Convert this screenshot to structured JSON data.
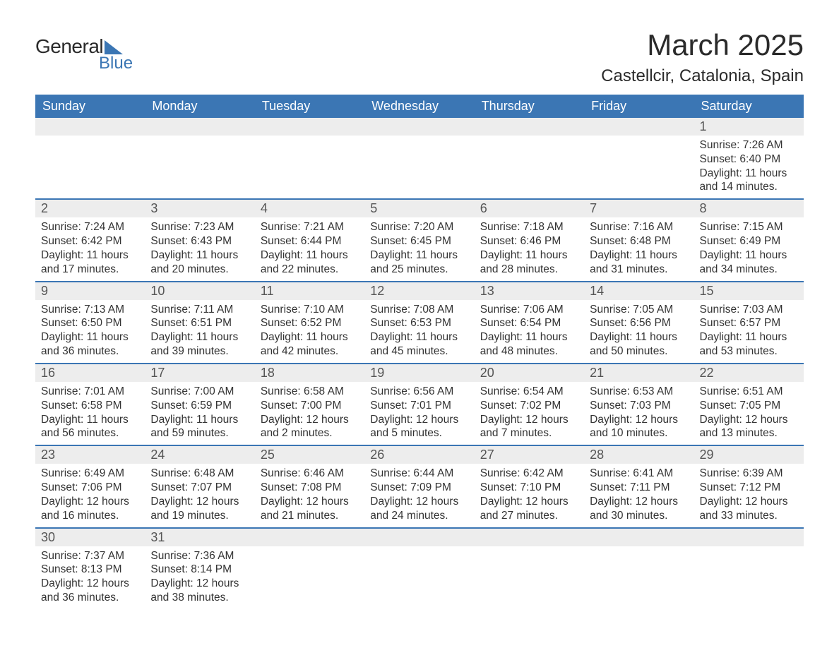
{
  "brand": {
    "word1": "General",
    "word2": "Blue"
  },
  "title": "March 2025",
  "location": "Castellcir, Catalonia, Spain",
  "colors": {
    "header_bg": "#3b76b4",
    "header_text": "#ffffff",
    "daynum_bg": "#ededed",
    "row_divider": "#3b76b4",
    "body_text": "#333333",
    "page_bg": "#ffffff"
  },
  "typography": {
    "title_fontsize": 42,
    "location_fontsize": 24,
    "dayheader_fontsize": 18,
    "daynum_fontsize": 18,
    "body_fontsize": 15.5
  },
  "day_headers": [
    "Sunday",
    "Monday",
    "Tuesday",
    "Wednesday",
    "Thursday",
    "Friday",
    "Saturday"
  ],
  "weeks": [
    [
      {
        "empty": true
      },
      {
        "empty": true
      },
      {
        "empty": true
      },
      {
        "empty": true
      },
      {
        "empty": true
      },
      {
        "empty": true
      },
      {
        "num": "1",
        "sunrise": "Sunrise: 7:26 AM",
        "sunset": "Sunset: 6:40 PM",
        "day1": "Daylight: 11 hours",
        "day2": "and 14 minutes."
      }
    ],
    [
      {
        "num": "2",
        "sunrise": "Sunrise: 7:24 AM",
        "sunset": "Sunset: 6:42 PM",
        "day1": "Daylight: 11 hours",
        "day2": "and 17 minutes."
      },
      {
        "num": "3",
        "sunrise": "Sunrise: 7:23 AM",
        "sunset": "Sunset: 6:43 PM",
        "day1": "Daylight: 11 hours",
        "day2": "and 20 minutes."
      },
      {
        "num": "4",
        "sunrise": "Sunrise: 7:21 AM",
        "sunset": "Sunset: 6:44 PM",
        "day1": "Daylight: 11 hours",
        "day2": "and 22 minutes."
      },
      {
        "num": "5",
        "sunrise": "Sunrise: 7:20 AM",
        "sunset": "Sunset: 6:45 PM",
        "day1": "Daylight: 11 hours",
        "day2": "and 25 minutes."
      },
      {
        "num": "6",
        "sunrise": "Sunrise: 7:18 AM",
        "sunset": "Sunset: 6:46 PM",
        "day1": "Daylight: 11 hours",
        "day2": "and 28 minutes."
      },
      {
        "num": "7",
        "sunrise": "Sunrise: 7:16 AM",
        "sunset": "Sunset: 6:48 PM",
        "day1": "Daylight: 11 hours",
        "day2": "and 31 minutes."
      },
      {
        "num": "8",
        "sunrise": "Sunrise: 7:15 AM",
        "sunset": "Sunset: 6:49 PM",
        "day1": "Daylight: 11 hours",
        "day2": "and 34 minutes."
      }
    ],
    [
      {
        "num": "9",
        "sunrise": "Sunrise: 7:13 AM",
        "sunset": "Sunset: 6:50 PM",
        "day1": "Daylight: 11 hours",
        "day2": "and 36 minutes."
      },
      {
        "num": "10",
        "sunrise": "Sunrise: 7:11 AM",
        "sunset": "Sunset: 6:51 PM",
        "day1": "Daylight: 11 hours",
        "day2": "and 39 minutes."
      },
      {
        "num": "11",
        "sunrise": "Sunrise: 7:10 AM",
        "sunset": "Sunset: 6:52 PM",
        "day1": "Daylight: 11 hours",
        "day2": "and 42 minutes."
      },
      {
        "num": "12",
        "sunrise": "Sunrise: 7:08 AM",
        "sunset": "Sunset: 6:53 PM",
        "day1": "Daylight: 11 hours",
        "day2": "and 45 minutes."
      },
      {
        "num": "13",
        "sunrise": "Sunrise: 7:06 AM",
        "sunset": "Sunset: 6:54 PM",
        "day1": "Daylight: 11 hours",
        "day2": "and 48 minutes."
      },
      {
        "num": "14",
        "sunrise": "Sunrise: 7:05 AM",
        "sunset": "Sunset: 6:56 PM",
        "day1": "Daylight: 11 hours",
        "day2": "and 50 minutes."
      },
      {
        "num": "15",
        "sunrise": "Sunrise: 7:03 AM",
        "sunset": "Sunset: 6:57 PM",
        "day1": "Daylight: 11 hours",
        "day2": "and 53 minutes."
      }
    ],
    [
      {
        "num": "16",
        "sunrise": "Sunrise: 7:01 AM",
        "sunset": "Sunset: 6:58 PM",
        "day1": "Daylight: 11 hours",
        "day2": "and 56 minutes."
      },
      {
        "num": "17",
        "sunrise": "Sunrise: 7:00 AM",
        "sunset": "Sunset: 6:59 PM",
        "day1": "Daylight: 11 hours",
        "day2": "and 59 minutes."
      },
      {
        "num": "18",
        "sunrise": "Sunrise: 6:58 AM",
        "sunset": "Sunset: 7:00 PM",
        "day1": "Daylight: 12 hours",
        "day2": "and 2 minutes."
      },
      {
        "num": "19",
        "sunrise": "Sunrise: 6:56 AM",
        "sunset": "Sunset: 7:01 PM",
        "day1": "Daylight: 12 hours",
        "day2": "and 5 minutes."
      },
      {
        "num": "20",
        "sunrise": "Sunrise: 6:54 AM",
        "sunset": "Sunset: 7:02 PM",
        "day1": "Daylight: 12 hours",
        "day2": "and 7 minutes."
      },
      {
        "num": "21",
        "sunrise": "Sunrise: 6:53 AM",
        "sunset": "Sunset: 7:03 PM",
        "day1": "Daylight: 12 hours",
        "day2": "and 10 minutes."
      },
      {
        "num": "22",
        "sunrise": "Sunrise: 6:51 AM",
        "sunset": "Sunset: 7:05 PM",
        "day1": "Daylight: 12 hours",
        "day2": "and 13 minutes."
      }
    ],
    [
      {
        "num": "23",
        "sunrise": "Sunrise: 6:49 AM",
        "sunset": "Sunset: 7:06 PM",
        "day1": "Daylight: 12 hours",
        "day2": "and 16 minutes."
      },
      {
        "num": "24",
        "sunrise": "Sunrise: 6:48 AM",
        "sunset": "Sunset: 7:07 PM",
        "day1": "Daylight: 12 hours",
        "day2": "and 19 minutes."
      },
      {
        "num": "25",
        "sunrise": "Sunrise: 6:46 AM",
        "sunset": "Sunset: 7:08 PM",
        "day1": "Daylight: 12 hours",
        "day2": "and 21 minutes."
      },
      {
        "num": "26",
        "sunrise": "Sunrise: 6:44 AM",
        "sunset": "Sunset: 7:09 PM",
        "day1": "Daylight: 12 hours",
        "day2": "and 24 minutes."
      },
      {
        "num": "27",
        "sunrise": "Sunrise: 6:42 AM",
        "sunset": "Sunset: 7:10 PM",
        "day1": "Daylight: 12 hours",
        "day2": "and 27 minutes."
      },
      {
        "num": "28",
        "sunrise": "Sunrise: 6:41 AM",
        "sunset": "Sunset: 7:11 PM",
        "day1": "Daylight: 12 hours",
        "day2": "and 30 minutes."
      },
      {
        "num": "29",
        "sunrise": "Sunrise: 6:39 AM",
        "sunset": "Sunset: 7:12 PM",
        "day1": "Daylight: 12 hours",
        "day2": "and 33 minutes."
      }
    ],
    [
      {
        "num": "30",
        "sunrise": "Sunrise: 7:37 AM",
        "sunset": "Sunset: 8:13 PM",
        "day1": "Daylight: 12 hours",
        "day2": "and 36 minutes."
      },
      {
        "num": "31",
        "sunrise": "Sunrise: 7:36 AM",
        "sunset": "Sunset: 8:14 PM",
        "day1": "Daylight: 12 hours",
        "day2": "and 38 minutes."
      },
      {
        "empty": true
      },
      {
        "empty": true
      },
      {
        "empty": true
      },
      {
        "empty": true
      },
      {
        "empty": true
      }
    ]
  ]
}
